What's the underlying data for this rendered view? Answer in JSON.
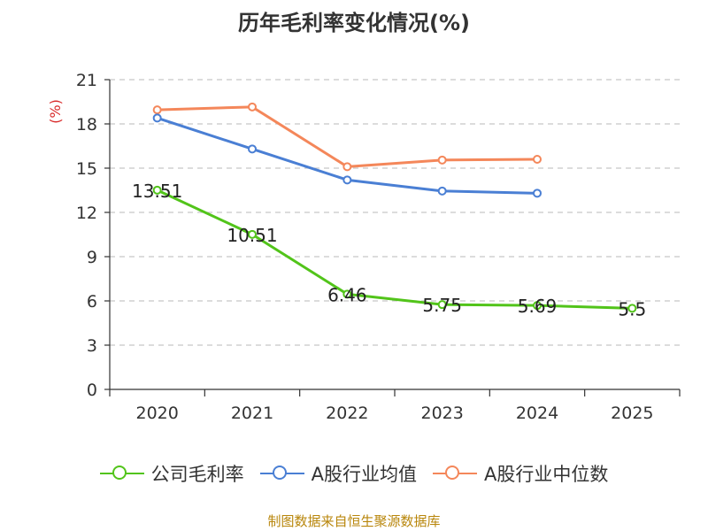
{
  "chart_data": {
    "type": "line",
    "title": "历年毛利率变化情况(%)",
    "ylabel": "(%)",
    "xlabel": "",
    "categories": [
      "2020",
      "2021",
      "2022",
      "2023",
      "2024",
      "2025"
    ],
    "ylim": [
      0,
      21
    ],
    "yticks": [
      0,
      3,
      6,
      9,
      12,
      15,
      18,
      21
    ],
    "grid": true,
    "legend_position": "bottom",
    "series": [
      {
        "name": "公司毛利率",
        "color": "#52c41a",
        "values": [
          13.51,
          10.51,
          6.46,
          5.75,
          5.69,
          5.5
        ],
        "labels": [
          "13.51",
          "10.51",
          "6.46",
          "5.75",
          "5.69",
          "5.5"
        ]
      },
      {
        "name": "A股行业均值",
        "color": "#4a7fd4",
        "values": [
          18.4,
          16.3,
          14.2,
          13.45,
          13.3,
          null
        ]
      },
      {
        "name": "A股行业中位数",
        "color": "#f4875a",
        "values": [
          18.95,
          19.15,
          15.1,
          15.55,
          15.6,
          null
        ]
      }
    ]
  },
  "source": "制图数据来自恒生聚源数据库"
}
